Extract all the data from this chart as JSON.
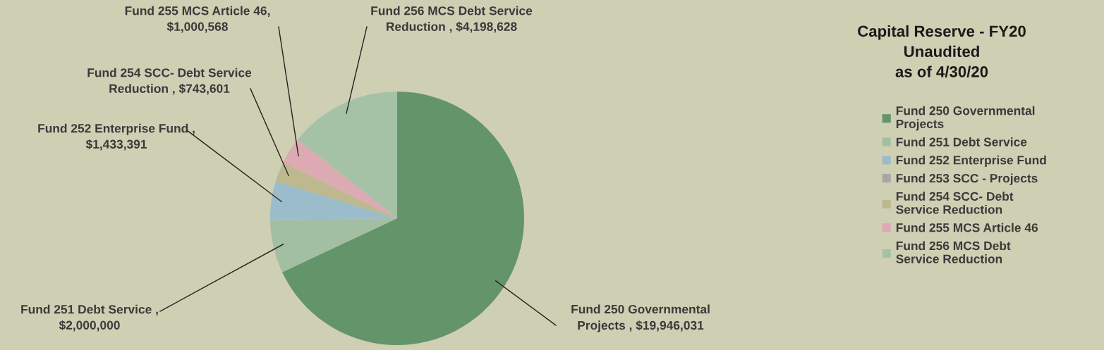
{
  "chart_data": {
    "type": "pie",
    "title": "Capital Reserve - FY20\nUnaudited\nas of 4/30/20",
    "categories": [
      "Fund 250 Governmental Projects",
      "Fund 251 Debt Service",
      "Fund 252 Enterprise Fund",
      "Fund 253 SCC - Projects",
      "Fund 254 SCC- Debt Service Reduction",
      "Fund 255 MCS Article 46",
      "Fund 256 MCS Debt Service Reduction"
    ],
    "values": [
      19946031,
      2000000,
      1433391,
      0,
      743601,
      1000568,
      4198628
    ],
    "value_labels": [
      "Fund 250 Governmental\nProjects , $19,946,031",
      "Fund 251 Debt Service ,\n$2,000,000",
      "Fund 252 Enterprise Fund ,\n$1,433,391",
      null,
      "Fund 254 SCC- Debt Service\nReduction , $743,601",
      "Fund 255 MCS Article 46,\n$1,000,568",
      "Fund 256 MCS Debt Service\nReduction , $4,198,628"
    ],
    "colors": [
      "#64946a",
      "#a3bfa3",
      "#9bbccb",
      "#a6a6a6",
      "#bdb88e",
      "#dcaab2",
      "#a6c2a6"
    ],
    "legend": "right"
  }
}
